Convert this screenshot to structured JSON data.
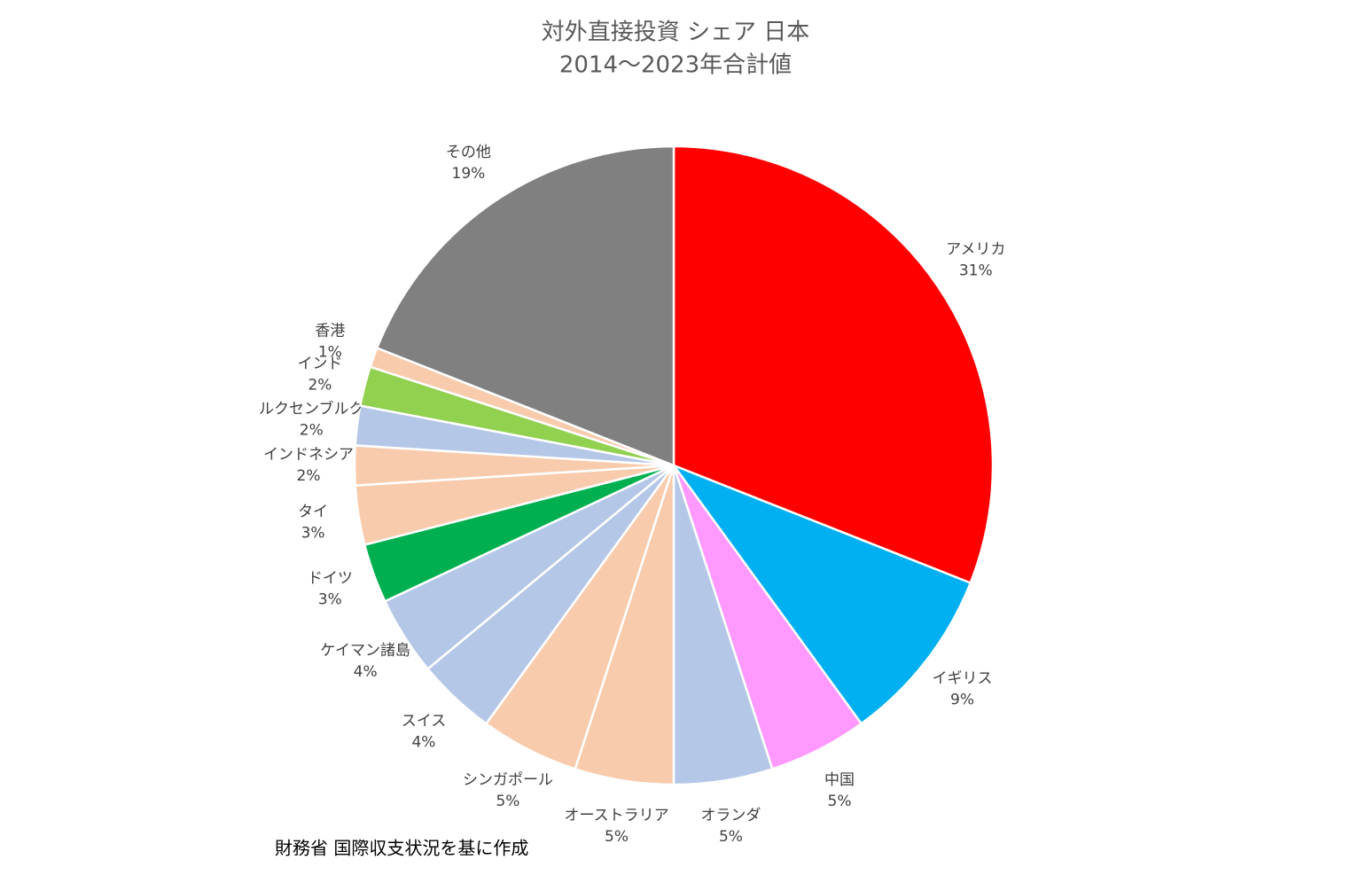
{
  "chart_data": {
    "type": "pie",
    "title": "対外直接投資 シェア 日本",
    "subtitle": "2014〜2023年合計値",
    "source": "財務省 国際収支状況を基に作成",
    "categories": [
      "アメリカ",
      "イギリス",
      "中国",
      "オランダ",
      "オーストラリア",
      "シンガポール",
      "スイス",
      "ケイマン諸島",
      "ドイツ",
      "タイ",
      "インドネシア",
      "ルクセンブルク",
      "インド",
      "香港",
      "その他"
    ],
    "values": [
      31,
      9,
      5,
      5,
      5,
      5,
      4,
      4,
      3,
      3,
      2,
      2,
      2,
      1,
      19
    ],
    "value_labels": [
      "31%",
      "9%",
      "5%",
      "5%",
      "5%",
      "5%",
      "4%",
      "4%",
      "3%",
      "3%",
      "2%",
      "2%",
      "2%",
      "1%",
      "19%"
    ],
    "colors": [
      "#ff0000",
      "#00b0f0",
      "#ff99ff",
      "#b4c7e7",
      "#f8cbad",
      "#f8cbad",
      "#b4c7e7",
      "#b4c7e7",
      "#00b050",
      "#f8cbad",
      "#f8cbad",
      "#b4c7e7",
      "#92d050",
      "#f8cbad",
      "#808080"
    ]
  }
}
